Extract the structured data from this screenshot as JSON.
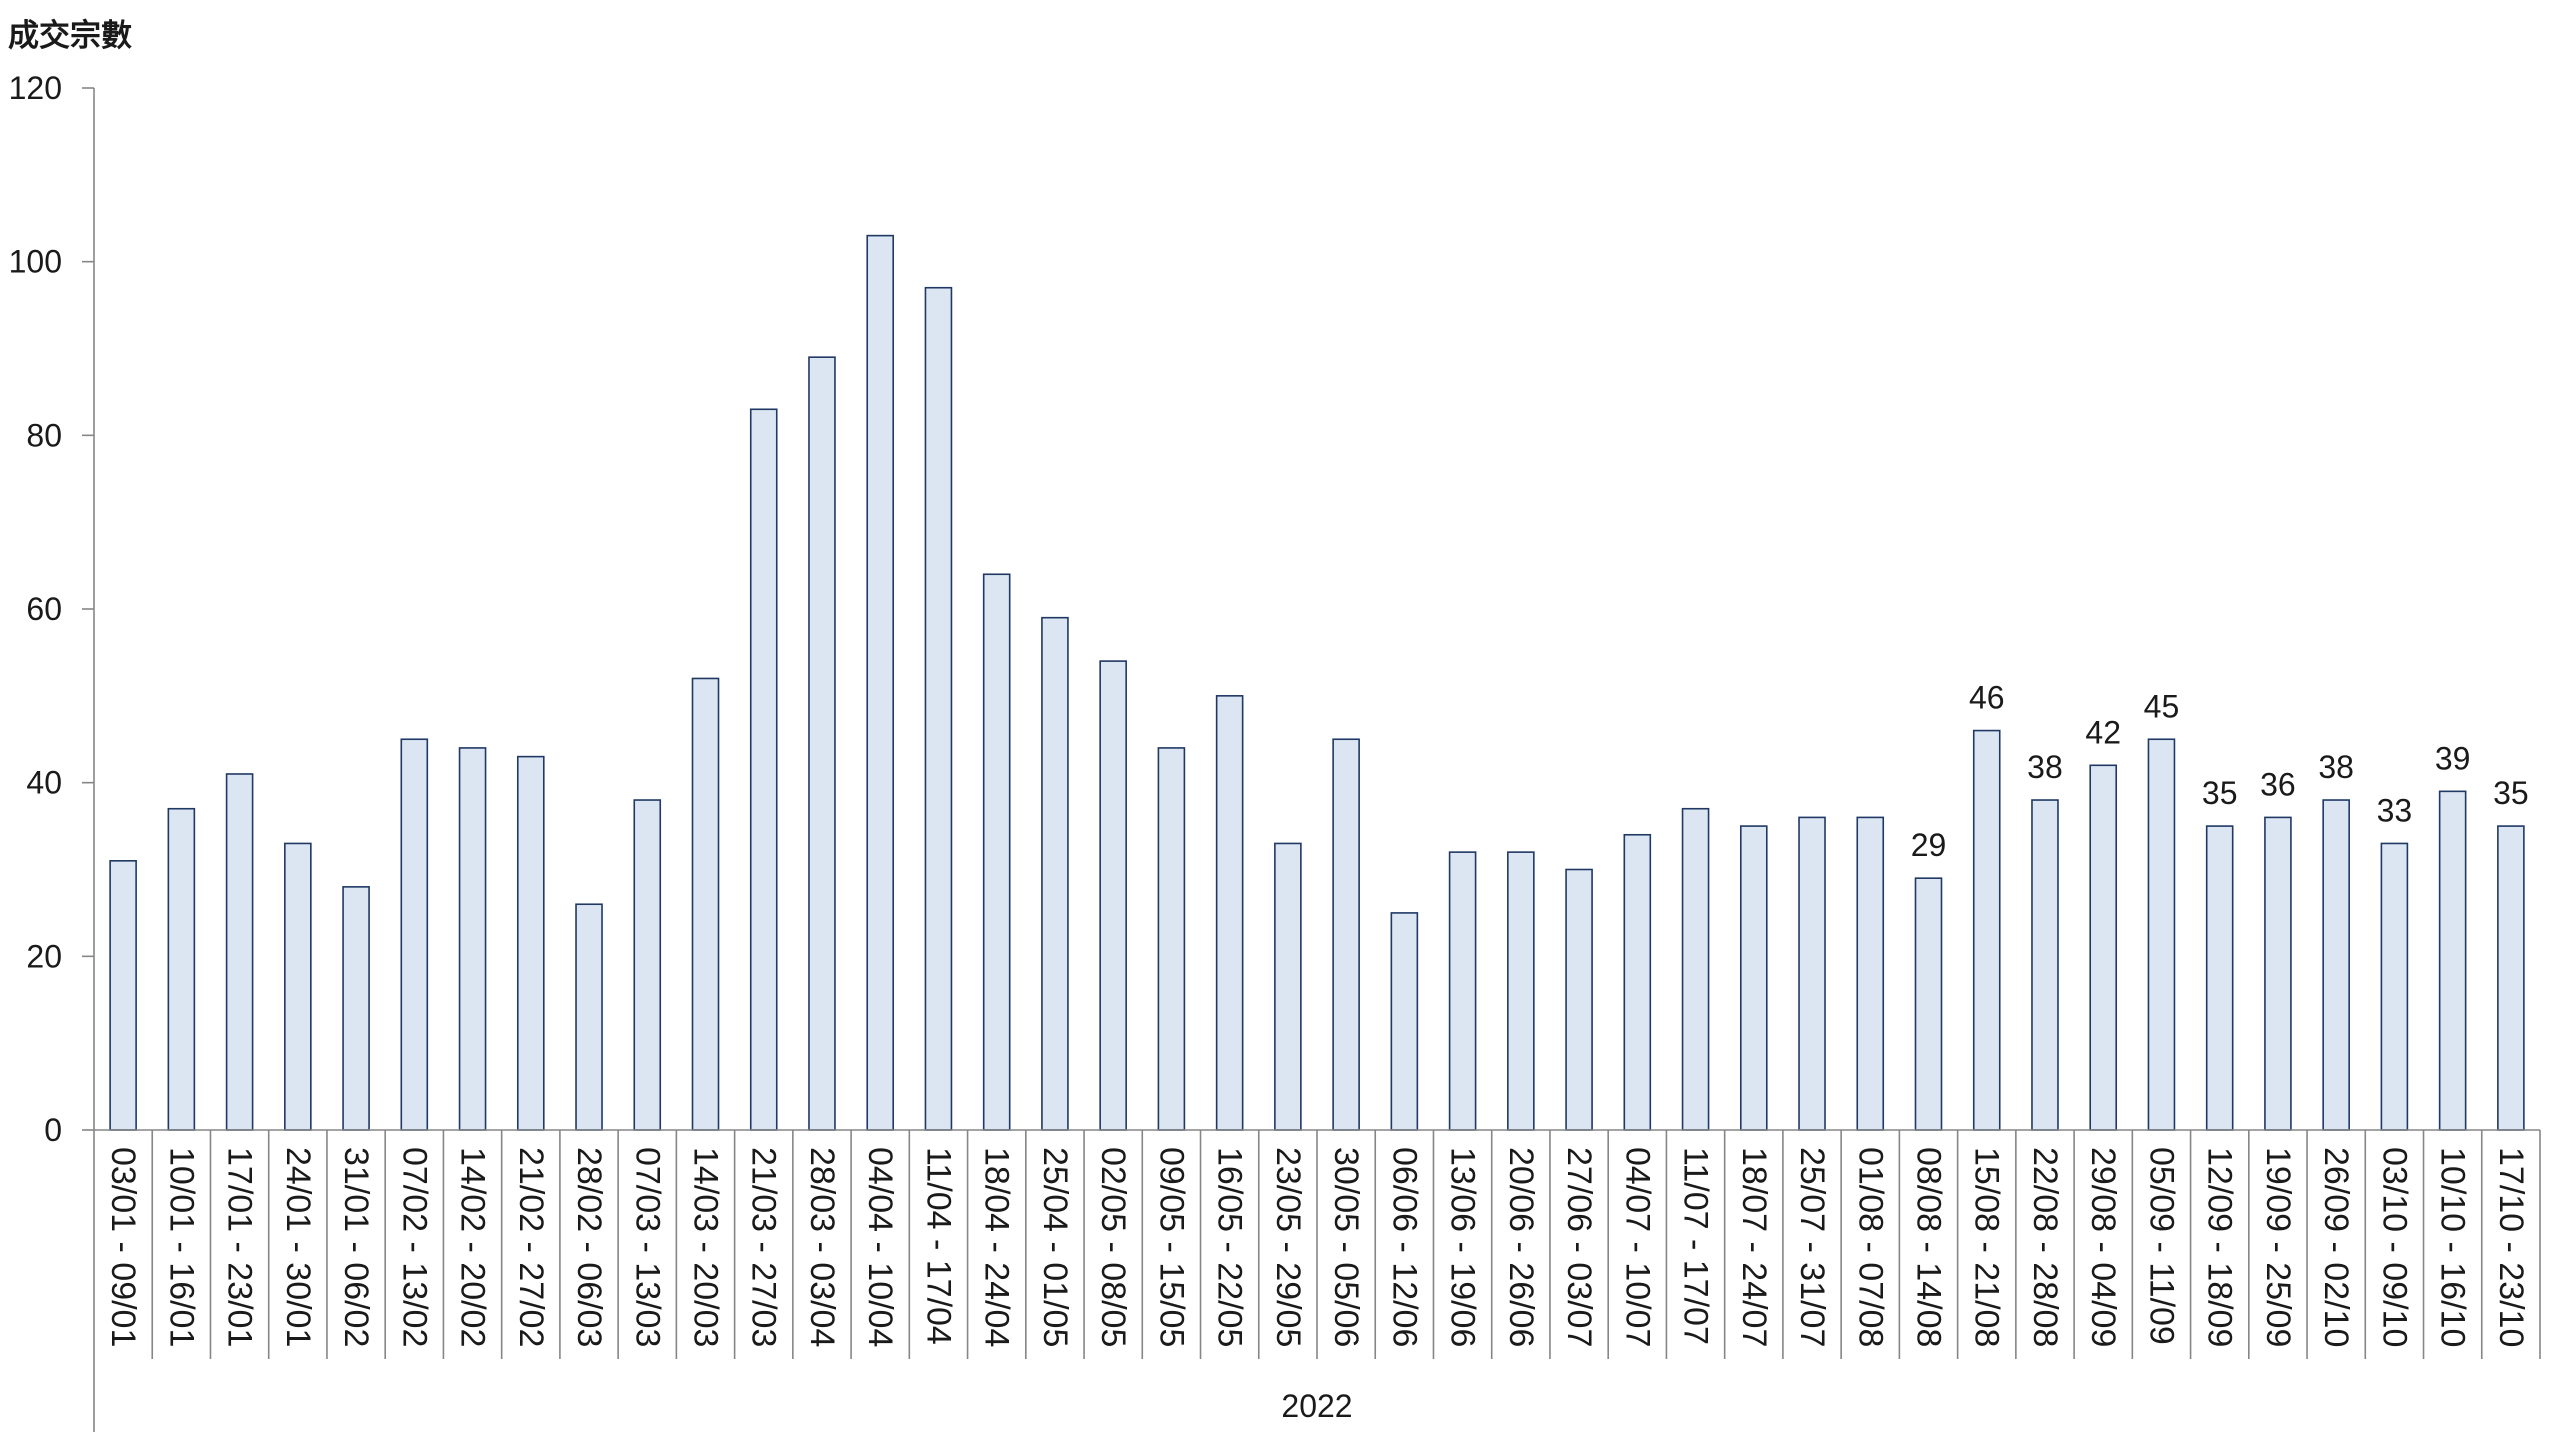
{
  "chart_data": {
    "type": "bar",
    "ylabel": "成交宗數",
    "x_group_label": "2022",
    "ylim": [
      0,
      120
    ],
    "yticks": [
      0,
      20,
      40,
      60,
      80,
      100,
      120
    ],
    "grid": false,
    "categories": [
      "03/01 - 09/01",
      "10/01 - 16/01",
      "17/01 - 23/01",
      "24/01 - 30/01",
      "31/01 - 06/02",
      "07/02 - 13/02",
      "14/02 - 20/02",
      "21/02 - 27/02",
      "28/02 - 06/03",
      "07/03 - 13/03",
      "14/03 - 20/03",
      "21/03 - 27/03",
      "28/03 - 03/04",
      "04/04 - 10/04",
      "11/04 - 17/04",
      "18/04 - 24/04",
      "25/04 - 01/05",
      "02/05 - 08/05",
      "09/05 - 15/05",
      "16/05 - 22/05",
      "23/05 - 29/05",
      "30/05 - 05/06",
      "06/06 - 12/06",
      "13/06 - 19/06",
      "20/06 - 26/06",
      "27/06 - 03/07",
      "04/07 - 10/07",
      "11/07 - 17/07",
      "18/07 - 24/07",
      "25/07 - 31/07",
      "01/08 - 07/08",
      "08/08 - 14/08",
      "15/08 - 21/08",
      "22/08 - 28/08",
      "29/08 - 04/09",
      "05/09 - 11/09",
      "12/09 - 18/09",
      "19/09 - 25/09",
      "26/09 - 02/10",
      "03/10 - 09/10",
      "10/10 - 16/10",
      "17/10 - 23/10"
    ],
    "values": [
      31,
      37,
      41,
      33,
      28,
      45,
      44,
      43,
      26,
      38,
      52,
      83,
      89,
      103,
      97,
      64,
      59,
      54,
      44,
      50,
      33,
      45,
      25,
      32,
      32,
      30,
      34,
      37,
      35,
      36,
      36,
      29,
      46,
      38,
      42,
      45,
      35,
      36,
      38,
      33,
      39,
      35
    ],
    "data_labels": [
      null,
      null,
      null,
      null,
      null,
      null,
      null,
      null,
      null,
      null,
      null,
      null,
      null,
      null,
      null,
      null,
      null,
      null,
      null,
      null,
      null,
      null,
      null,
      null,
      null,
      null,
      null,
      null,
      null,
      null,
      null,
      29,
      46,
      38,
      42,
      45,
      35,
      36,
      38,
      33,
      39,
      35
    ],
    "colors": {
      "bar_fill": "#dce6f2",
      "bar_stroke": "#1f3864",
      "axis": "#868686",
      "text": "#1a1a1a"
    }
  }
}
